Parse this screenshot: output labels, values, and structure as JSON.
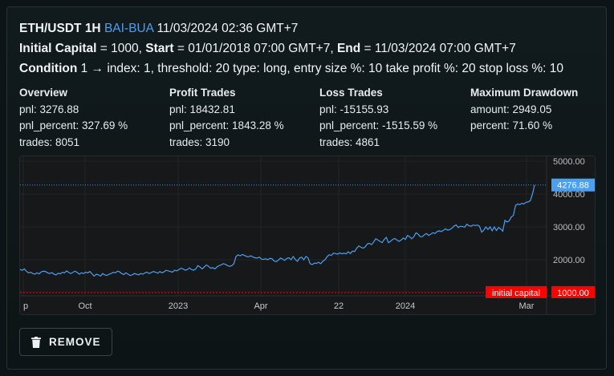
{
  "header": {
    "pair": "ETH/USDT",
    "interval": "1H",
    "strategy": "BAI-BUA",
    "datetime": "11/03/2024 02:36 GMT+7",
    "initial_capital_label": "Initial Capital",
    "initial_capital_value": "= 1000,",
    "start_label": "Start",
    "start_value": "= 01/01/2018 07:00 GMT+7,",
    "end_label": "End",
    "end_value": "= 11/03/2024 07:00 GMT+7",
    "condition_label": "Condition",
    "condition_text": "1 → index: 1, threshold: 20 type: long, entry size %: 10 take profit %: 20 stop loss %: 10"
  },
  "stats": {
    "overview": {
      "title": "Overview",
      "pnl": "pnl: 3276.88",
      "pnl_percent": "pnl_percent: 327.69 %",
      "trades": "trades: 8051"
    },
    "profit": {
      "title": "Profit Trades",
      "pnl": "pnl: 18432.81",
      "pnl_percent": "pnl_percent: 1843.28 %",
      "trades": "trades: 3190"
    },
    "loss": {
      "title": "Loss Trades",
      "pnl": "pnl: -15155.93",
      "pnl_percent": "pnl_percent: -1515.59 %",
      "trades": "trades: 4861"
    },
    "drawdown": {
      "title": "Maximum Drawdown",
      "amount": "amount: 2949.05",
      "percent": "percent: 71.60 %"
    }
  },
  "chart_data": {
    "type": "line",
    "x_ticks": [
      "p",
      "Oct",
      "2023",
      "Apr",
      "22",
      "2024",
      "Mar"
    ],
    "y_ticks": [
      2000,
      3000,
      4000,
      5000
    ],
    "y_tick_labels": [
      "2000.00",
      "3000.00",
      "4000.00",
      "5000.00"
    ],
    "ylim": [
      900,
      5150
    ],
    "last_value_label": "4276.88",
    "last_value": 4276.88,
    "baseline_value": 1000,
    "baseline_label": "initial capital",
    "baseline_value_label": "1000.00",
    "line_color": "#4a9ff0",
    "baseline_color": "#ff0000",
    "series": [
      {
        "values": [
          1700,
          1680,
          1720,
          1650,
          1600,
          1620,
          1580,
          1560,
          1600,
          1570,
          1630,
          1650,
          1640,
          1600,
          1580,
          1610,
          1560,
          1540,
          1590,
          1570,
          1620,
          1600,
          1660,
          1610,
          1580,
          1620,
          1650,
          1610,
          1560,
          1600,
          1580,
          1620,
          1600,
          1640,
          1570,
          1500,
          1560,
          1540,
          1500,
          1580,
          1540,
          1520,
          1560,
          1580,
          1620,
          1600,
          1650,
          1630,
          1580,
          1550,
          1600,
          1560,
          1520,
          1540,
          1580,
          1560,
          1540,
          1580,
          1560,
          1600,
          1620,
          1580,
          1610,
          1640,
          1620,
          1590,
          1640,
          1600,
          1630,
          1680,
          1660,
          1640,
          1620,
          1680,
          1660,
          1700,
          1740,
          1720,
          1680,
          1700,
          1750,
          1700,
          1680,
          1720,
          1820,
          1780,
          1720,
          1780,
          1840,
          1800,
          1740,
          1760,
          1720,
          1780,
          1820,
          1840,
          1880,
          1860,
          1820,
          1800,
          1820,
          1880,
          2100,
          2150,
          2120,
          2160,
          2130,
          2100,
          2090,
          2120,
          2080,
          2060,
          2050,
          2080,
          2020,
          2010,
          2030,
          2000,
          2040,
          2030,
          1960,
          1940,
          1990,
          2050,
          2020,
          1980,
          2040,
          2060,
          2000,
          2100,
          2010,
          1950,
          2050,
          2080,
          2000,
          2100,
          2060,
          1880,
          1850,
          1900,
          1890,
          1920,
          1880,
          1950,
          2000,
          2090,
          2150,
          2130,
          2200,
          2190,
          2170,
          2210,
          2180,
          2200,
          2180,
          2240,
          2190,
          2260,
          2250,
          2350,
          2420,
          2380,
          2350,
          2390,
          2480,
          2500,
          2460,
          2540,
          2640,
          2600,
          2560,
          2520,
          2620,
          2680,
          2520,
          2560,
          2620,
          2650,
          2600,
          2560,
          2600,
          2660,
          2620,
          2740,
          2700,
          2640,
          2700,
          2820,
          2780,
          2700,
          2700,
          2760,
          2800,
          2740,
          2780,
          2820,
          2800,
          2860,
          2880,
          2860,
          2900,
          2940,
          2900,
          2920,
          2960,
          3030,
          3060,
          2980,
          3020,
          3010,
          2990,
          3080,
          3040,
          3020,
          3060,
          3040,
          3060,
          3020,
          2840,
          2900,
          3000,
          2920,
          3000,
          2880,
          3000,
          2890,
          2980,
          2940,
          2870,
          3200,
          3150,
          3180,
          3300,
          3350,
          3650,
          3700,
          3680,
          3720,
          3700,
          3750,
          3760,
          3800,
          4000,
          4276.88
        ]
      }
    ]
  },
  "actions": {
    "remove_label": "REMOVE"
  }
}
